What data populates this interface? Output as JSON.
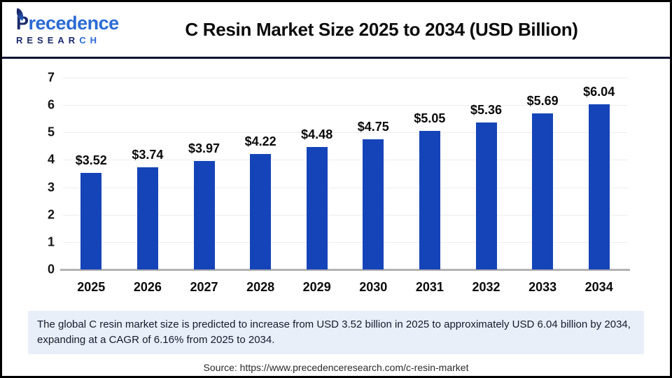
{
  "header": {
    "logo": {
      "name_initial": "P",
      "name_rest": "recedence",
      "research_dark": "RESEAR",
      "research_light": "CH"
    },
    "title": "C Resin Market Size 2025 to 2034 (USD Billion)"
  },
  "chart_data": {
    "type": "bar",
    "title": "C Resin Market Size 2025 to 2034 (USD Billion)",
    "categories": [
      "2025",
      "2026",
      "2027",
      "2028",
      "2029",
      "2030",
      "2031",
      "2032",
      "2033",
      "2034"
    ],
    "values": [
      3.52,
      3.74,
      3.97,
      4.22,
      4.48,
      4.75,
      5.05,
      5.36,
      5.69,
      6.04
    ],
    "value_labels": [
      "$3.52",
      "$3.74",
      "$3.97",
      "$4.22",
      "$4.48",
      "$4.75",
      "$5.05",
      "$5.36",
      "$5.69",
      "$6.04"
    ],
    "xlabel": "",
    "ylabel": "",
    "ylim": [
      0,
      7
    ],
    "yticks": [
      0,
      1,
      2,
      3,
      4,
      5,
      6,
      7
    ],
    "grid": true,
    "legend": false,
    "bar_color": "#1544b8"
  },
  "caption": {
    "text": "The global C resin market size is predicted to increase from USD 3.52 billion in 2025 to approximately USD 6.04 billion by 2034, expanding at a CAGR of 6.16% from 2025 to 2034."
  },
  "source": {
    "text": "Source: https://www.precedenceresearch.com/c-resin-market"
  },
  "colors": {
    "bar_blue": "#1544b8",
    "logo_navy": "#1b2a6b",
    "logo_blue": "#2a6ad4",
    "divider_navy": "#0e1433",
    "caption_bg": "#e9eff9"
  }
}
